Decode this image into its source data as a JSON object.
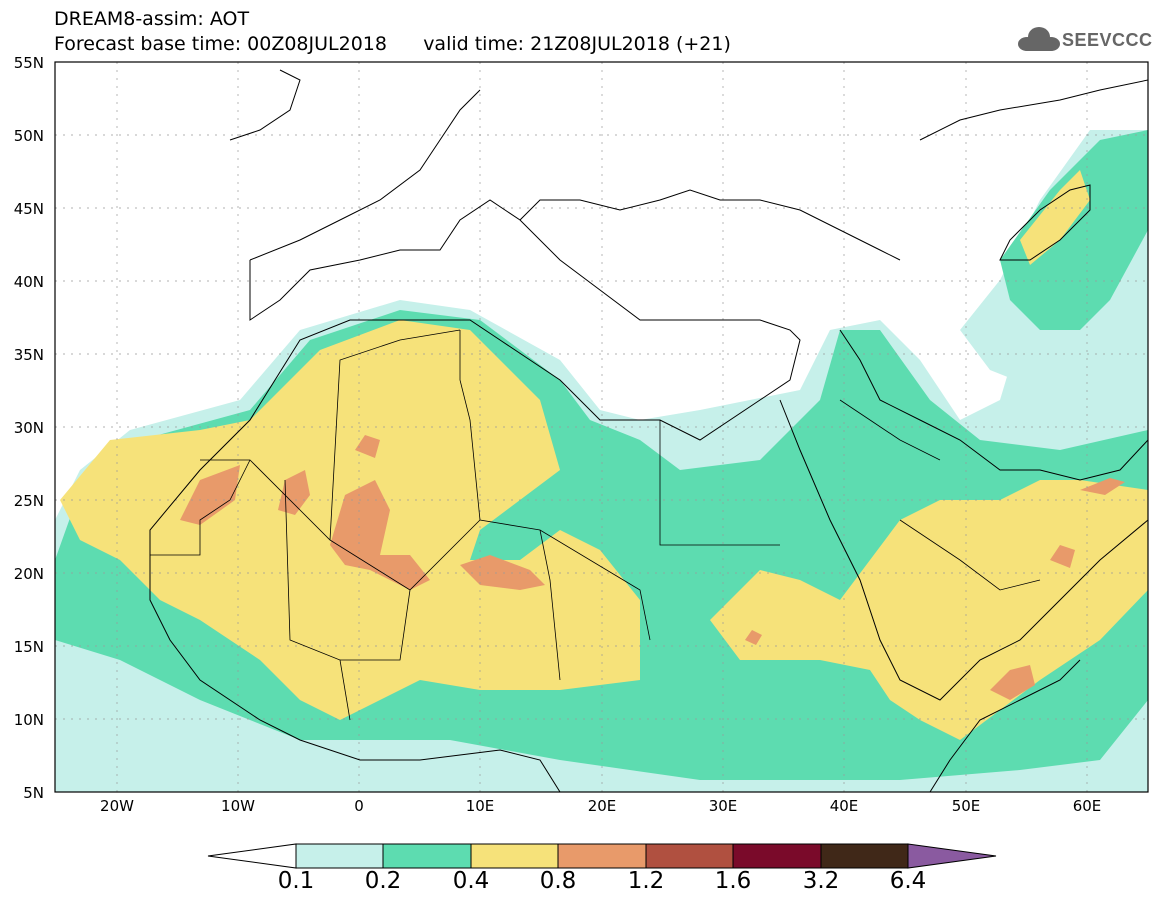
{
  "header": {
    "title_line1": "DREAM8-assim: AOT",
    "title_line2": "Forecast base time: 00Z08JUL2018      valid time: 21Z08JUL2018 (+21)"
  },
  "logo": {
    "text": "SEEVCCC",
    "icon": "cloud-icon"
  },
  "map": {
    "lon_range": [
      -25,
      65
    ],
    "lat_range": [
      5,
      55
    ],
    "lat_labels": [
      "55N",
      "50N",
      "45N",
      "40N",
      "35N",
      "30N",
      "25N",
      "20N",
      "15N",
      "10N",
      "5N"
    ],
    "lon_labels": [
      "20W",
      "10W",
      "0",
      "10E",
      "20E",
      "30E",
      "40E",
      "50E",
      "60E"
    ]
  },
  "colorbar": {
    "labels": [
      "0.1",
      "0.2",
      "0.4",
      "0.8",
      "1.2",
      "1.6",
      "3.2",
      "6.4"
    ],
    "colors": [
      "#ffffff",
      "#c6f0ea",
      "#5ddcb0",
      "#f6e27a",
      "#e89a6a",
      "#b05040",
      "#7a0a2a",
      "#402818",
      "#8a5aa0"
    ]
  }
}
